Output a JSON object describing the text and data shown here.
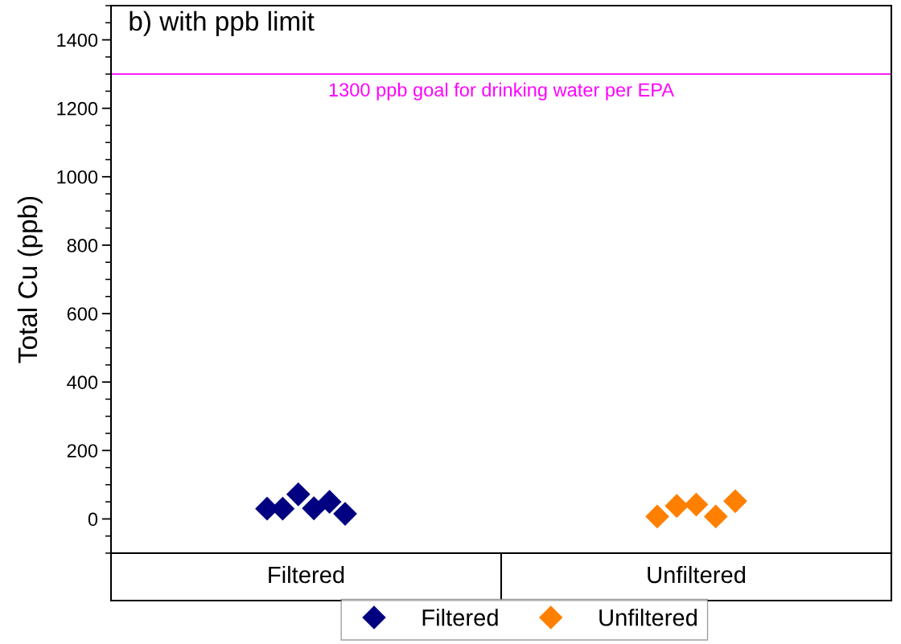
{
  "chart_data": {
    "type": "scatter",
    "title": "b) with ppb limit",
    "ylabel": "Total Cu (ppb)",
    "categories": [
      "Filtered",
      "Unfiltered"
    ],
    "ylim": [
      -100,
      1500
    ],
    "yticks": [
      0,
      200,
      400,
      600,
      800,
      1000,
      1200,
      1400
    ],
    "series": [
      {
        "name": "Filtered",
        "color": "#000080",
        "x": [
          "Filtered",
          "Filtered",
          "Filtered",
          "Filtered",
          "Filtered",
          "Filtered"
        ],
        "values": [
          30,
          30,
          72,
          31,
          50,
          15
        ]
      },
      {
        "name": "Unfiltered",
        "color": "#ff8000",
        "x": [
          "Unfiltered",
          "Unfiltered",
          "Unfiltered",
          "Unfiltered",
          "Unfiltered"
        ],
        "values": [
          7,
          38,
          42,
          7,
          52
        ]
      }
    ],
    "ref_lines": [
      {
        "axis": "y",
        "value": 1300,
        "label": "1300 ppb goal for drinking water per EPA",
        "color": "#ff00ff",
        "line_style": "solid"
      }
    ],
    "marker": "diamond",
    "grid": false,
    "legend": "bottom"
  }
}
